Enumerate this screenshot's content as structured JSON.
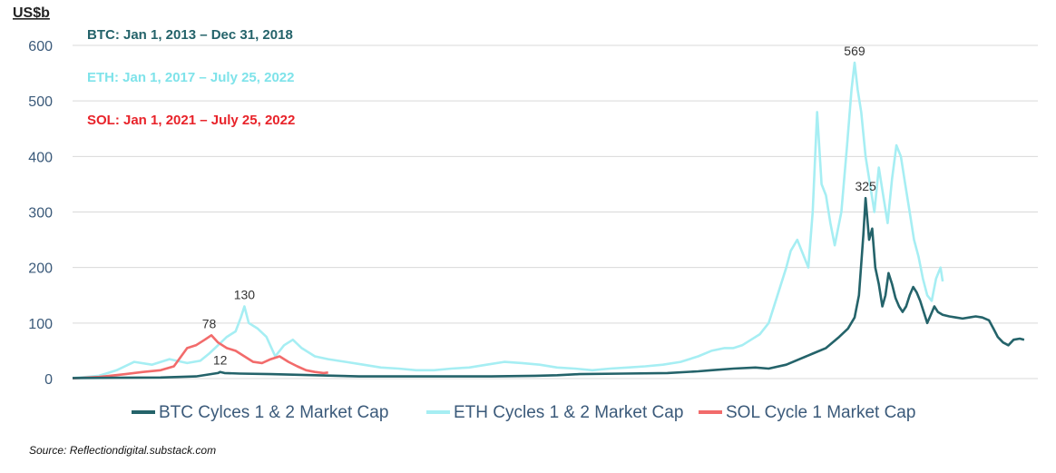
{
  "chart_data": {
    "type": "line",
    "ylabel": "US$b",
    "ylim": [
      0,
      600
    ],
    "yticks": [
      0,
      100,
      200,
      300,
      400,
      500,
      600
    ],
    "xlabel": "",
    "x_range": [
      0,
      2191
    ],
    "x_unit": "days",
    "grid": "horizontal",
    "legend": "bottom",
    "annotations": [
      {
        "text": "BTC: Jan 1, 2013 – Dec 31, 2018",
        "color": "#24636a"
      },
      {
        "text": "ETH: Jan 1, 2017 – July 25, 2022",
        "color": "#7fe3ea"
      },
      {
        "text": "SOL: Jan 1, 2021 – July 25, 2022",
        "color": "#e8232a"
      }
    ],
    "peak_labels": [
      {
        "text": "569",
        "x": 1775,
        "y": 569
      },
      {
        "text": "325",
        "x": 1800,
        "y": 325
      },
      {
        "text": "130",
        "x": 390,
        "y": 130
      },
      {
        "text": "78",
        "x": 310,
        "y": 78
      },
      {
        "text": "12",
        "x": 335,
        "y": 12
      }
    ],
    "series": [
      {
        "name": "BTC Cylces 1 & 2 Market Cap",
        "color": "#24636a",
        "points": [
          [
            0,
            1
          ],
          [
            100,
            1.5
          ],
          [
            200,
            2
          ],
          [
            280,
            4
          ],
          [
            330,
            10
          ],
          [
            335,
            12
          ],
          [
            345,
            10
          ],
          [
            380,
            9
          ],
          [
            450,
            8
          ],
          [
            550,
            6
          ],
          [
            650,
            4
          ],
          [
            800,
            4
          ],
          [
            950,
            4
          ],
          [
            1050,
            5
          ],
          [
            1100,
            6
          ],
          [
            1150,
            8
          ],
          [
            1250,
            9
          ],
          [
            1350,
            10
          ],
          [
            1420,
            13
          ],
          [
            1450,
            15
          ],
          [
            1500,
            18
          ],
          [
            1550,
            20
          ],
          [
            1580,
            18
          ],
          [
            1620,
            25
          ],
          [
            1650,
            35
          ],
          [
            1680,
            45
          ],
          [
            1710,
            55
          ],
          [
            1740,
            75
          ],
          [
            1760,
            90
          ],
          [
            1775,
            110
          ],
          [
            1785,
            150
          ],
          [
            1795,
            260
          ],
          [
            1800,
            325
          ],
          [
            1808,
            250
          ],
          [
            1815,
            270
          ],
          [
            1822,
            200
          ],
          [
            1830,
            170
          ],
          [
            1838,
            130
          ],
          [
            1845,
            150
          ],
          [
            1852,
            190
          ],
          [
            1860,
            170
          ],
          [
            1868,
            145
          ],
          [
            1876,
            130
          ],
          [
            1884,
            120
          ],
          [
            1892,
            130
          ],
          [
            1900,
            150
          ],
          [
            1908,
            165
          ],
          [
            1916,
            155
          ],
          [
            1924,
            140
          ],
          [
            1932,
            120
          ],
          [
            1940,
            100
          ],
          [
            1948,
            115
          ],
          [
            1956,
            130
          ],
          [
            1964,
            120
          ],
          [
            1975,
            115
          ],
          [
            1990,
            112
          ],
          [
            2005,
            110
          ],
          [
            2020,
            108
          ],
          [
            2035,
            110
          ],
          [
            2050,
            112
          ],
          [
            2065,
            110
          ],
          [
            2080,
            105
          ],
          [
            2090,
            90
          ],
          [
            2100,
            75
          ],
          [
            2112,
            65
          ],
          [
            2124,
            60
          ],
          [
            2136,
            70
          ],
          [
            2150,
            72
          ],
          [
            2160,
            70
          ]
        ]
      },
      {
        "name": "ETH Cycles 1 & 2 Market Cap",
        "color": "#a6eef3",
        "points": [
          [
            0,
            1
          ],
          [
            60,
            5
          ],
          [
            100,
            15
          ],
          [
            140,
            30
          ],
          [
            180,
            25
          ],
          [
            220,
            35
          ],
          [
            260,
            28
          ],
          [
            290,
            32
          ],
          [
            310,
            45
          ],
          [
            330,
            60
          ],
          [
            350,
            75
          ],
          [
            370,
            85
          ],
          [
            382,
            110
          ],
          [
            390,
            130
          ],
          [
            400,
            100
          ],
          [
            420,
            90
          ],
          [
            440,
            75
          ],
          [
            460,
            40
          ],
          [
            480,
            60
          ],
          [
            500,
            70
          ],
          [
            520,
            55
          ],
          [
            550,
            40
          ],
          [
            580,
            35
          ],
          [
            620,
            30
          ],
          [
            660,
            25
          ],
          [
            700,
            20
          ],
          [
            740,
            18
          ],
          [
            780,
            15
          ],
          [
            820,
            15
          ],
          [
            860,
            18
          ],
          [
            900,
            20
          ],
          [
            940,
            25
          ],
          [
            980,
            30
          ],
          [
            1020,
            28
          ],
          [
            1060,
            25
          ],
          [
            1100,
            20
          ],
          [
            1140,
            18
          ],
          [
            1180,
            15
          ],
          [
            1220,
            18
          ],
          [
            1260,
            20
          ],
          [
            1300,
            22
          ],
          [
            1340,
            25
          ],
          [
            1380,
            30
          ],
          [
            1420,
            40
          ],
          [
            1450,
            50
          ],
          [
            1480,
            55
          ],
          [
            1500,
            55
          ],
          [
            1520,
            60
          ],
          [
            1540,
            70
          ],
          [
            1560,
            80
          ],
          [
            1580,
            100
          ],
          [
            1600,
            150
          ],
          [
            1620,
            200
          ],
          [
            1630,
            230
          ],
          [
            1645,
            250
          ],
          [
            1660,
            220
          ],
          [
            1670,
            200
          ],
          [
            1680,
            300
          ],
          [
            1690,
            480
          ],
          [
            1700,
            350
          ],
          [
            1710,
            330
          ],
          [
            1720,
            280
          ],
          [
            1730,
            240
          ],
          [
            1745,
            300
          ],
          [
            1758,
            420
          ],
          [
            1768,
            520
          ],
          [
            1775,
            569
          ],
          [
            1782,
            520
          ],
          [
            1790,
            480
          ],
          [
            1800,
            400
          ],
          [
            1810,
            350
          ],
          [
            1820,
            300
          ],
          [
            1830,
            380
          ],
          [
            1840,
            330
          ],
          [
            1850,
            280
          ],
          [
            1860,
            360
          ],
          [
            1870,
            420
          ],
          [
            1880,
            400
          ],
          [
            1890,
            350
          ],
          [
            1900,
            300
          ],
          [
            1910,
            250
          ],
          [
            1920,
            220
          ],
          [
            1930,
            180
          ],
          [
            1940,
            150
          ],
          [
            1950,
            140
          ],
          [
            1960,
            180
          ],
          [
            1970,
            200
          ],
          [
            1975,
            175
          ]
        ]
      },
      {
        "name": "SOL Cycle 1 Market Cap",
        "color": "#f26b6b",
        "points": [
          [
            0,
            0.5
          ],
          [
            60,
            3
          ],
          [
            120,
            8
          ],
          [
            160,
            12
          ],
          [
            200,
            15
          ],
          [
            230,
            22
          ],
          [
            260,
            55
          ],
          [
            280,
            60
          ],
          [
            300,
            70
          ],
          [
            315,
            78
          ],
          [
            330,
            65
          ],
          [
            350,
            55
          ],
          [
            370,
            50
          ],
          [
            390,
            40
          ],
          [
            410,
            30
          ],
          [
            430,
            28
          ],
          [
            450,
            35
          ],
          [
            470,
            40
          ],
          [
            490,
            30
          ],
          [
            510,
            22
          ],
          [
            530,
            15
          ],
          [
            550,
            12
          ],
          [
            570,
            10
          ],
          [
            580,
            11
          ]
        ]
      }
    ]
  },
  "source": "Source: Reflectiondigital.substack.com"
}
